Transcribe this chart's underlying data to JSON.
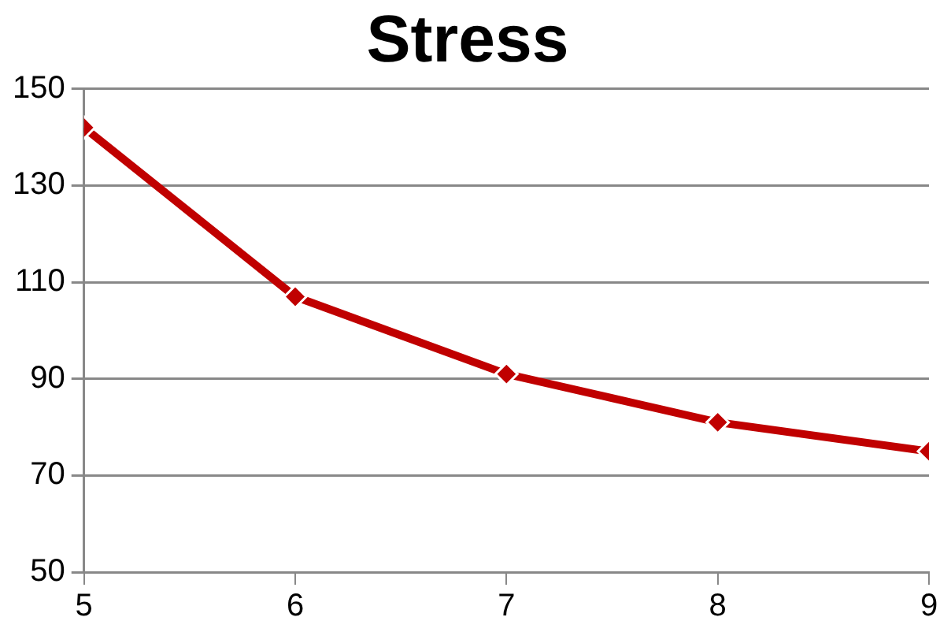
{
  "chart_data": {
    "type": "line",
    "title": "Stress",
    "x": [
      5,
      6,
      7,
      8,
      9
    ],
    "series": [
      {
        "color": "#c00000",
        "values": [
          142,
          107,
          91,
          81,
          75
        ]
      }
    ],
    "xlim": [
      5,
      9
    ],
    "xticks": [
      5,
      6,
      7,
      8,
      9
    ],
    "ylim": [
      50,
      150
    ],
    "yticks": [
      50,
      70,
      90,
      110,
      130,
      150
    ],
    "grid": "y",
    "legend": false,
    "marker": "diamond",
    "line_style": "solid"
  }
}
